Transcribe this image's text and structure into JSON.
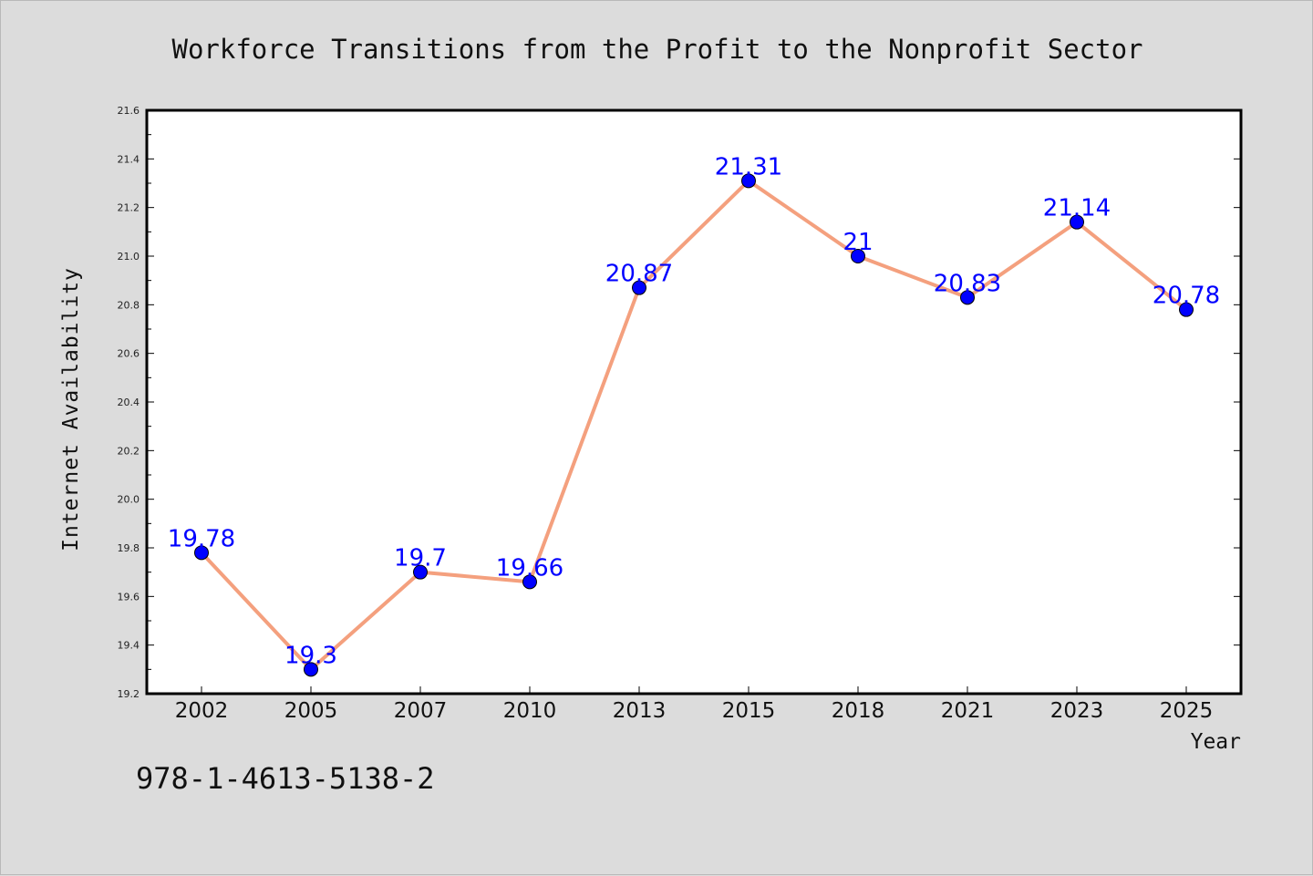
{
  "chart_data": {
    "type": "line",
    "title": "Workforce Transitions from the Profit to the Nonprofit Sector",
    "xlabel": "Year",
    "ylabel": "Internet Availability",
    "categories": [
      "2002",
      "2005",
      "2007",
      "2010",
      "2013",
      "2015",
      "2018",
      "2021",
      "2023",
      "2025"
    ],
    "series": [
      {
        "values": [
          19.78,
          19.3,
          19.7,
          19.66,
          20.87,
          21.31,
          21,
          20.83,
          21.14,
          20.78
        ],
        "labels": [
          "19.78",
          "19.3",
          "19.7",
          "19.66",
          "20.87",
          "21.31",
          "21",
          "20.83",
          "21.14",
          "20.78"
        ],
        "line_color": "#f4a07e",
        "marker_color": "#0000ff"
      }
    ],
    "ylim": [
      19.2,
      21.6
    ],
    "yticks": [
      "19.2",
      "19.4",
      "19.6",
      "19.8",
      "20.0",
      "20.2",
      "20.4",
      "20.6",
      "20.8",
      "21.0",
      "21.2",
      "21.4",
      "21.6"
    ],
    "grid": false,
    "legend": "none"
  },
  "footer": {
    "identifier": "978-1-4613-5138-2"
  },
  "colors": {
    "background": "#dcdcdc",
    "plot_area": "#ffffff",
    "line": "#f4a07e",
    "marker": "#0000ff",
    "data_label": "#0000ff"
  }
}
